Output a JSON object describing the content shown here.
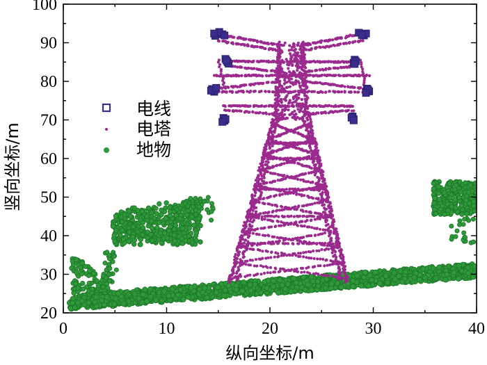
{
  "chart_data": {
    "type": "scatter",
    "xlabel": "纵向坐标/m",
    "ylabel": "竖向坐标/m",
    "xlim": [
      0,
      40
    ],
    "ylim": [
      20,
      100
    ],
    "x_ticks": [
      "0",
      "10",
      "20",
      "30",
      "40"
    ],
    "y_ticks": [
      "20",
      "30",
      "40",
      "50",
      "60",
      "70",
      "80",
      "90",
      "100"
    ],
    "grid": false,
    "legend_position": "upper-left",
    "series": [
      {
        "name": "电线",
        "marker": "square",
        "color": "#3a2d8c",
        "points": [
          [
            14.7,
            91.8
          ],
          [
            15.4,
            92.2
          ],
          [
            15.1,
            92.8
          ],
          [
            14.6,
            92.4
          ],
          [
            15.6,
            91.9
          ],
          [
            15.7,
            85.8
          ],
          [
            15.9,
            85.0
          ],
          [
            16.0,
            84.6
          ],
          [
            15.8,
            85.4
          ],
          [
            14.4,
            78.0
          ],
          [
            14.6,
            77.3
          ],
          [
            14.3,
            77.6
          ],
          [
            14.8,
            78.3
          ],
          [
            15.5,
            70.5
          ],
          [
            15.6,
            69.8
          ],
          [
            15.7,
            70.2
          ],
          [
            15.4,
            69.5
          ],
          [
            28.6,
            92.6
          ],
          [
            29.1,
            91.9
          ],
          [
            29.3,
            92.4
          ],
          [
            28.9,
            92.0
          ],
          [
            28.2,
            85.6
          ],
          [
            28.1,
            84.8
          ],
          [
            28.3,
            85.2
          ],
          [
            28.2,
            84.5
          ],
          [
            29.4,
            78.1
          ],
          [
            29.6,
            77.4
          ],
          [
            29.5,
            77.8
          ],
          [
            29.3,
            77.0
          ],
          [
            28.0,
            70.9
          ],
          [
            28.1,
            70.2
          ],
          [
            27.9,
            70.6
          ],
          [
            28.1,
            69.9
          ]
        ]
      },
      {
        "name": "电塔",
        "marker": "dot",
        "color": "#9b2a8e",
        "description": "lattice transmission tower: two converging legs, cross bracing, four cross-arms"
      },
      {
        "name": "地物",
        "marker": "circle",
        "color": "#2e9a3a",
        "description": "ground band rising from y≈22 at x=0 to y≈31 at x=40 with tree clusters near x=5-12 and x=36-40"
      }
    ]
  }
}
